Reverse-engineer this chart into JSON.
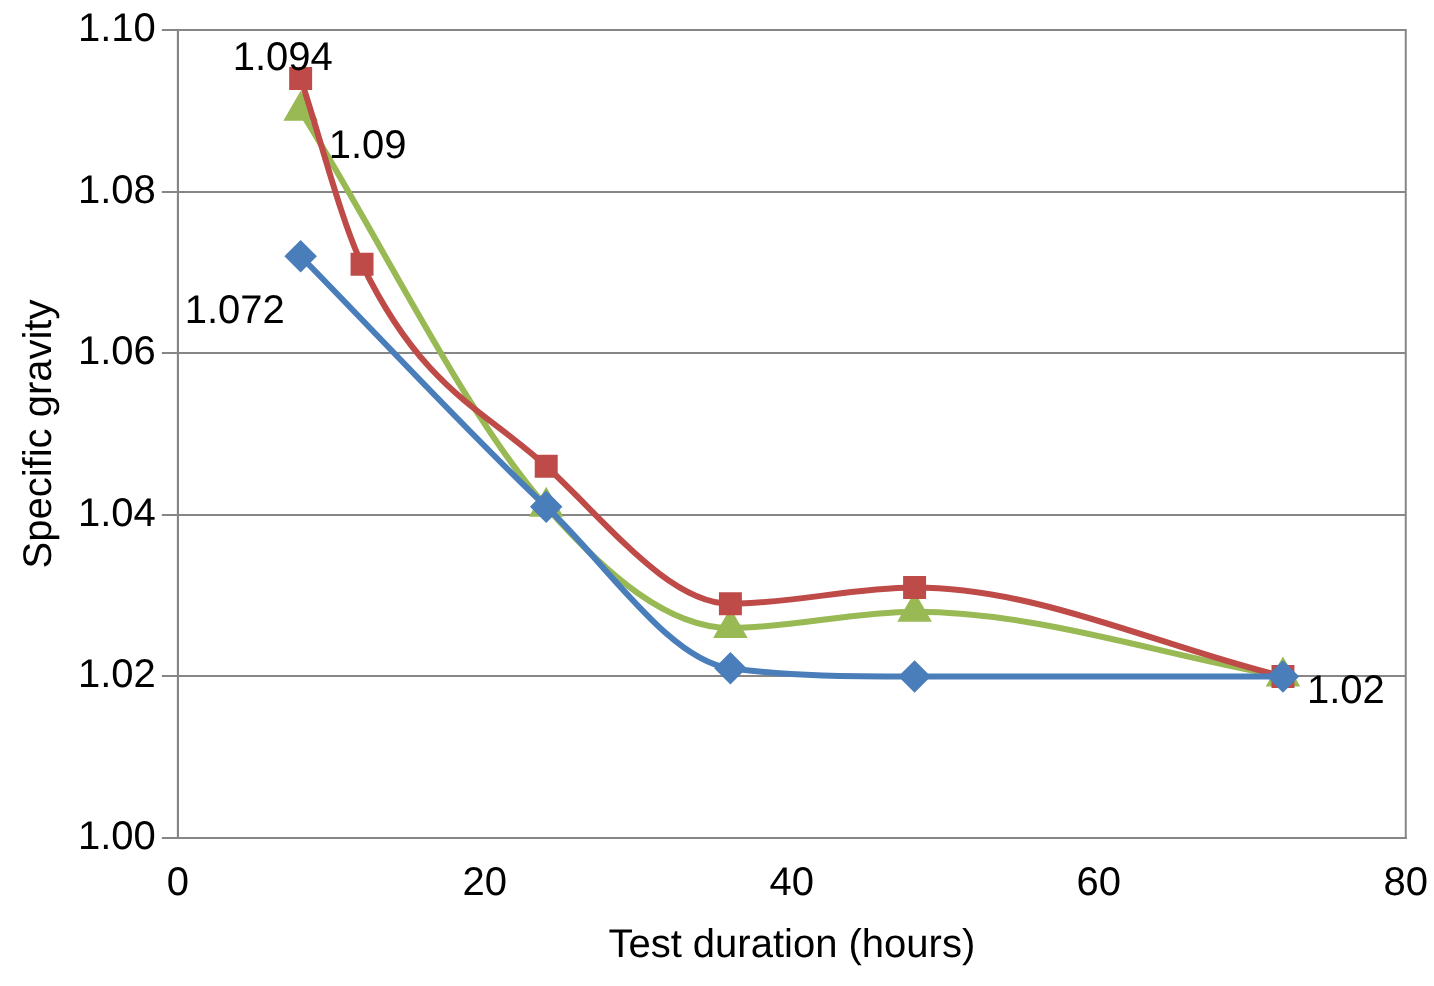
{
  "chart_data": {
    "type": "line",
    "xlabel": "Test duration (hours)",
    "ylabel": "Specific gravity",
    "xlim": [
      0,
      80
    ],
    "xticks": [
      0,
      20,
      40,
      60,
      80
    ],
    "ylim": [
      1.0,
      1.1
    ],
    "yticks": [
      {
        "value": 1.0,
        "label": "1.00"
      },
      {
        "value": 1.02,
        "label": "1.02"
      },
      {
        "value": 1.04,
        "label": "1.04"
      },
      {
        "value": 1.06,
        "label": "1.06"
      },
      {
        "value": 1.08,
        "label": "1.08"
      },
      {
        "value": 1.1,
        "label": "1.10"
      }
    ],
    "grid": "y",
    "series": [
      {
        "color": "#4a7ebb",
        "marker": "diamond",
        "x": [
          8,
          24,
          36,
          48,
          72
        ],
        "values": [
          1.072,
          1.041,
          1.021,
          1.02,
          1.02
        ],
        "value_labels": [
          "1.072",
          null,
          null,
          null,
          "1.02"
        ]
      },
      {
        "color": "#be4b48",
        "marker": "square",
        "x": [
          8,
          12,
          24,
          36,
          48,
          72
        ],
        "values": [
          1.094,
          1.071,
          1.046,
          1.029,
          1.031,
          1.02
        ],
        "value_labels": [
          "1.094",
          null,
          null,
          null,
          null,
          null
        ]
      },
      {
        "color": "#98b954",
        "marker": "triangle",
        "x": [
          8,
          24,
          36,
          48,
          72
        ],
        "values": [
          1.09,
          1.041,
          1.026,
          1.028,
          1.02
        ],
        "value_labels": [
          "1.09",
          null,
          null,
          null,
          null
        ]
      }
    ]
  }
}
